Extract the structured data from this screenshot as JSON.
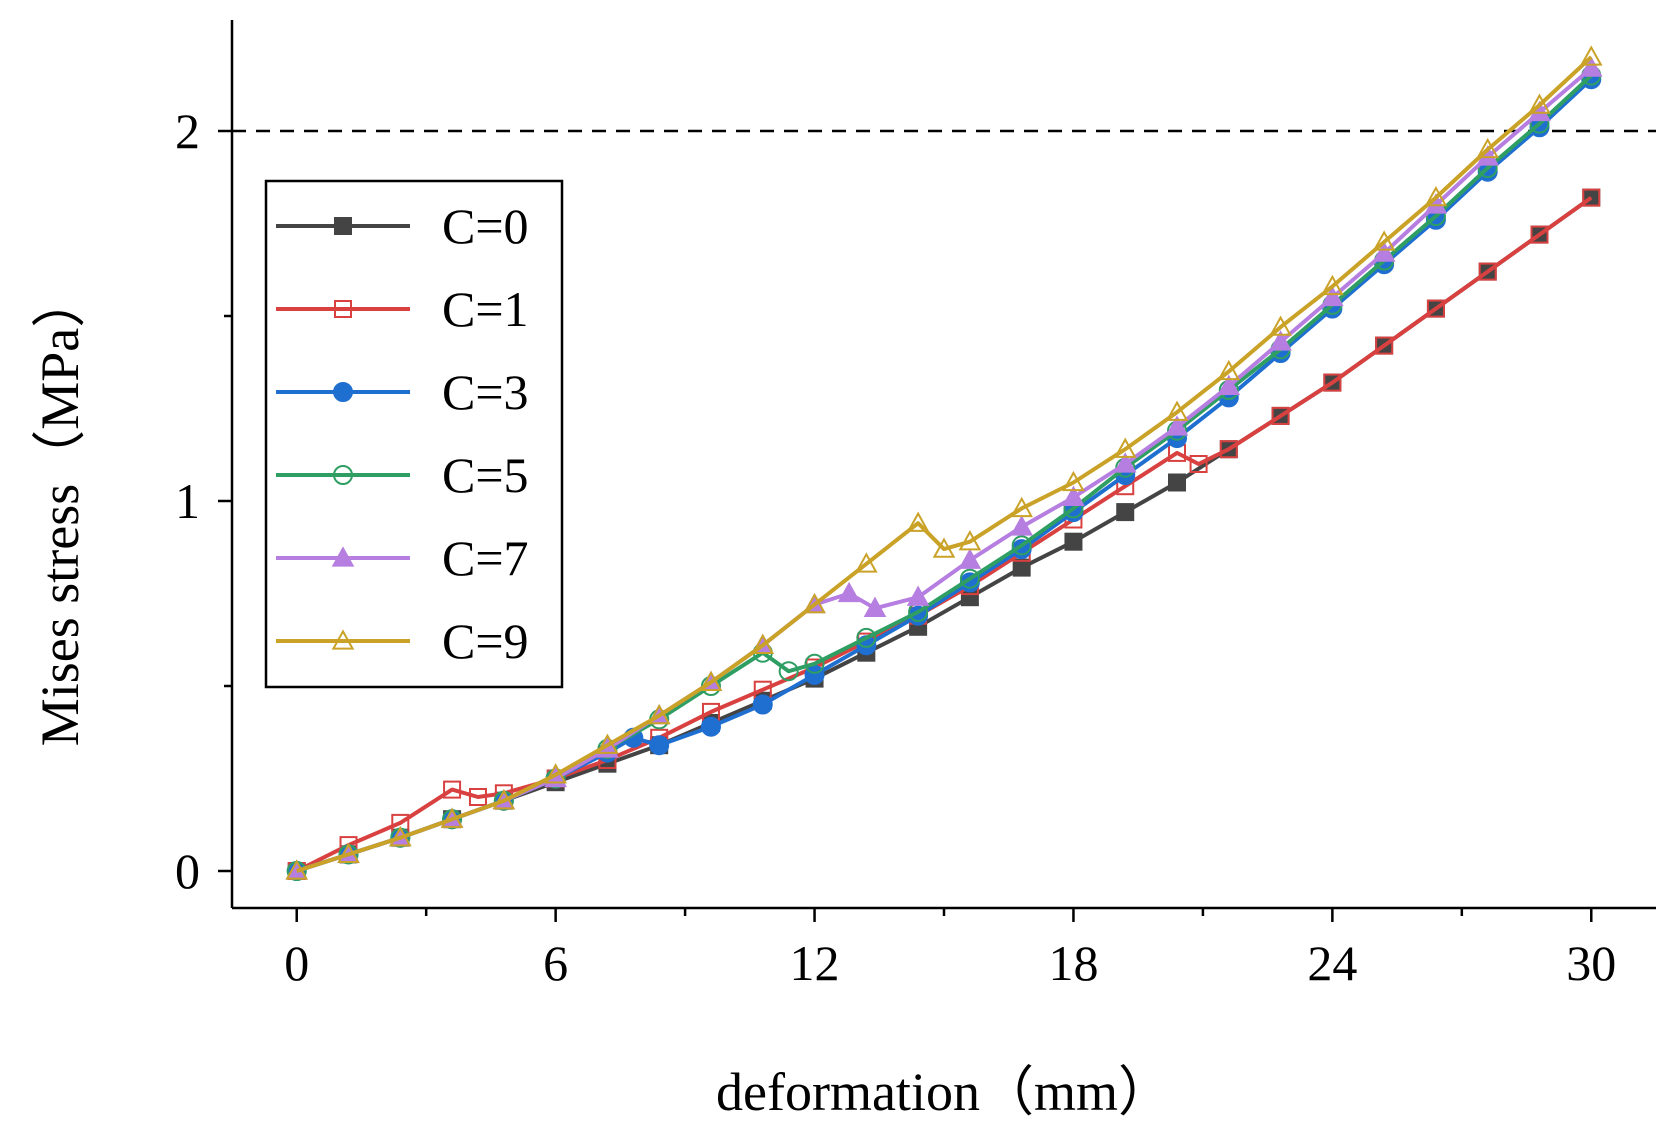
{
  "chart_data": {
    "type": "line",
    "title": "",
    "xlabel": "deformation（mm）",
    "ylabel": "Mises stress（MPa）",
    "xlim": [
      -1.5,
      31.5
    ],
    "ylim": [
      -0.1,
      2.3
    ],
    "xticks": [
      0,
      6,
      12,
      18,
      24,
      30
    ],
    "xtick_labels": [
      "0",
      "6",
      "12",
      "18",
      "24",
      "30"
    ],
    "xminor": [
      3,
      9,
      15,
      21,
      27
    ],
    "yticks": [
      0,
      1,
      2
    ],
    "ytick_labels": [
      "0",
      "1",
      "2"
    ],
    "yminor": [
      0.5,
      1.5
    ],
    "reference_line": {
      "y": 2.0,
      "style": "dashed",
      "color": "#000000"
    },
    "legend_position": "upper-left",
    "series": [
      {
        "name": "C=0",
        "color": "#444444",
        "marker": "square-filled",
        "x": [
          0,
          1.2,
          2.4,
          3.6,
          4.8,
          6.0,
          7.2,
          8.4,
          9.6,
          10.8,
          12.0,
          13.2,
          14.4,
          15.6,
          16.8,
          18.0,
          19.2,
          20.4,
          21.6,
          22.8,
          24.0,
          25.2,
          26.4,
          27.6,
          28.8,
          30.0
        ],
        "y": [
          0,
          0.045,
          0.09,
          0.14,
          0.19,
          0.24,
          0.29,
          0.34,
          0.4,
          0.46,
          0.52,
          0.59,
          0.66,
          0.74,
          0.82,
          0.89,
          0.97,
          1.05,
          1.14,
          1.23,
          1.32,
          1.42,
          1.52,
          1.62,
          1.72,
          1.82
        ]
      },
      {
        "name": "C=1",
        "color": "#d94040",
        "marker": "square-open",
        "x": [
          0,
          1.2,
          2.4,
          3.6,
          4.2,
          4.8,
          6.0,
          7.2,
          8.4,
          9.6,
          10.8,
          12.0,
          13.2,
          14.4,
          15.6,
          16.8,
          18.0,
          19.2,
          20.4,
          20.9,
          21.6,
          22.8,
          24.0,
          25.2,
          26.4,
          27.6,
          28.8,
          30.0
        ],
        "y": [
          0,
          0.07,
          0.13,
          0.22,
          0.2,
          0.21,
          0.25,
          0.3,
          0.36,
          0.43,
          0.49,
          0.55,
          0.62,
          0.69,
          0.77,
          0.86,
          0.95,
          1.04,
          1.13,
          1.1,
          1.14,
          1.23,
          1.32,
          1.42,
          1.52,
          1.62,
          1.72,
          1.82
        ]
      },
      {
        "name": "C=3",
        "color": "#1f6fd1",
        "marker": "circle-filled",
        "x": [
          0,
          1.2,
          2.4,
          3.6,
          4.8,
          6.0,
          7.2,
          7.8,
          8.4,
          9.6,
          10.8,
          12.0,
          13.2,
          14.4,
          15.6,
          16.8,
          18.0,
          19.2,
          20.4,
          21.6,
          22.8,
          24.0,
          25.2,
          26.4,
          27.6,
          28.8,
          30.0
        ],
        "y": [
          0,
          0.045,
          0.09,
          0.14,
          0.19,
          0.25,
          0.32,
          0.36,
          0.34,
          0.39,
          0.45,
          0.53,
          0.61,
          0.69,
          0.78,
          0.87,
          0.97,
          1.07,
          1.17,
          1.28,
          1.4,
          1.52,
          1.64,
          1.76,
          1.89,
          2.01,
          2.14
        ]
      },
      {
        "name": "C=5",
        "color": "#2e9e63",
        "marker": "circle-open",
        "x": [
          0,
          1.2,
          2.4,
          3.6,
          4.8,
          6.0,
          7.2,
          8.4,
          9.6,
          10.8,
          11.4,
          12.0,
          13.2,
          14.4,
          15.6,
          16.8,
          18.0,
          19.2,
          20.4,
          21.6,
          22.8,
          24.0,
          25.2,
          26.4,
          27.6,
          28.8,
          30.0
        ],
        "y": [
          0,
          0.045,
          0.09,
          0.14,
          0.19,
          0.25,
          0.33,
          0.41,
          0.5,
          0.59,
          0.54,
          0.56,
          0.63,
          0.7,
          0.79,
          0.88,
          0.98,
          1.09,
          1.19,
          1.3,
          1.41,
          1.53,
          1.65,
          1.77,
          1.9,
          2.02,
          2.15
        ]
      },
      {
        "name": "C=7",
        "color": "#b57ee0",
        "marker": "triangle-filled",
        "x": [
          0,
          1.2,
          2.4,
          3.6,
          4.8,
          6.0,
          7.2,
          8.4,
          9.6,
          10.8,
          12.0,
          12.8,
          13.4,
          14.4,
          15.6,
          16.8,
          18.0,
          19.2,
          20.4,
          21.6,
          22.8,
          24.0,
          25.2,
          26.4,
          27.6,
          28.8,
          30.0
        ],
        "y": [
          0,
          0.045,
          0.09,
          0.14,
          0.19,
          0.25,
          0.33,
          0.42,
          0.51,
          0.61,
          0.72,
          0.75,
          0.71,
          0.74,
          0.84,
          0.93,
          1.01,
          1.1,
          1.2,
          1.31,
          1.43,
          1.55,
          1.67,
          1.8,
          1.93,
          2.05,
          2.17
        ]
      },
      {
        "name": "C=9",
        "color": "#c9a227",
        "marker": "triangle-open",
        "x": [
          0,
          1.2,
          2.4,
          3.6,
          4.8,
          6.0,
          7.2,
          8.4,
          9.6,
          10.8,
          12.0,
          13.2,
          14.4,
          15.0,
          15.6,
          16.8,
          18.0,
          19.2,
          20.4,
          21.6,
          22.8,
          24.0,
          25.2,
          26.4,
          27.6,
          28.8,
          30.0
        ],
        "y": [
          0,
          0.045,
          0.09,
          0.14,
          0.19,
          0.26,
          0.34,
          0.42,
          0.51,
          0.61,
          0.72,
          0.83,
          0.94,
          0.87,
          0.89,
          0.98,
          1.05,
          1.14,
          1.24,
          1.35,
          1.47,
          1.58,
          1.7,
          1.82,
          1.95,
          2.07,
          2.2
        ]
      }
    ]
  }
}
